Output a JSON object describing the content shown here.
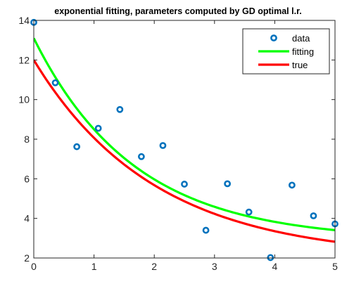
{
  "chart_data": {
    "type": "scatter",
    "title": "exponential fitting, parameters computed by GD optimal l.r.",
    "xlabel": "",
    "ylabel": "",
    "xlim": [
      0,
      5
    ],
    "ylim": [
      2,
      14
    ],
    "xticks": [
      0,
      1,
      2,
      3,
      4,
      5
    ],
    "yticks": [
      2,
      4,
      6,
      8,
      10,
      12,
      14
    ],
    "grid": false,
    "legend_position": "top-right",
    "series": [
      {
        "name": "data",
        "kind": "markers",
        "color": "#0072BD",
        "x": [
          0.0,
          0.357,
          0.714,
          1.071,
          1.429,
          1.786,
          2.143,
          2.5,
          2.857,
          3.214,
          3.571,
          3.929,
          4.286,
          4.643,
          5.0
        ],
        "y": [
          13.9,
          10.85,
          7.62,
          8.55,
          9.5,
          7.12,
          7.68,
          5.73,
          3.4,
          5.75,
          4.32,
          2.02,
          5.68,
          4.13,
          3.72
        ]
      },
      {
        "name": "fitting",
        "kind": "line",
        "color": "#00FF00",
        "equation": {
          "a": 10.2,
          "b": 0.6,
          "c": 2.9
        }
      },
      {
        "name": "true",
        "kind": "line",
        "color": "#FF0000",
        "equation": {
          "a": 10.0,
          "b": 0.5,
          "c": 2.0
        }
      }
    ]
  }
}
